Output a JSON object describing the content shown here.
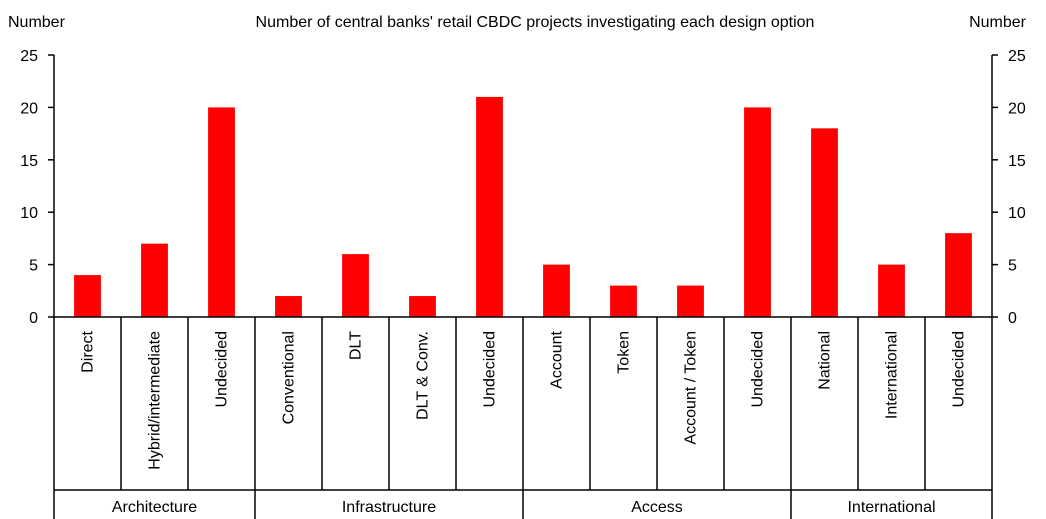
{
  "chart_data": {
    "type": "bar",
    "title": "Number of central banks' retail CBDC projects investigating each design option",
    "ylabel_left": "Number",
    "ylabel_right": "Number",
    "ylim": [
      0,
      25
    ],
    "yticks": [
      0,
      5,
      10,
      15,
      20,
      25
    ],
    "grid": false,
    "bar_color": "#ff0000",
    "categories": [
      "Direct",
      "Hybrid/intermediate",
      "Undecided",
      "Conventional",
      "DLT",
      "DLT & Conv.",
      "Undecided",
      "Account",
      "Token",
      "Account / Token",
      "Undecided",
      "National",
      "International",
      "Undecided"
    ],
    "values": [
      4,
      7,
      20,
      2,
      6,
      2,
      21,
      5,
      3,
      3,
      20,
      18,
      5,
      8
    ],
    "groups": [
      {
        "label": "Architecture",
        "count": 3
      },
      {
        "label": "Infrastructure",
        "count": 4
      },
      {
        "label": "Access",
        "count": 4
      },
      {
        "label": "International",
        "count": 3
      }
    ]
  }
}
